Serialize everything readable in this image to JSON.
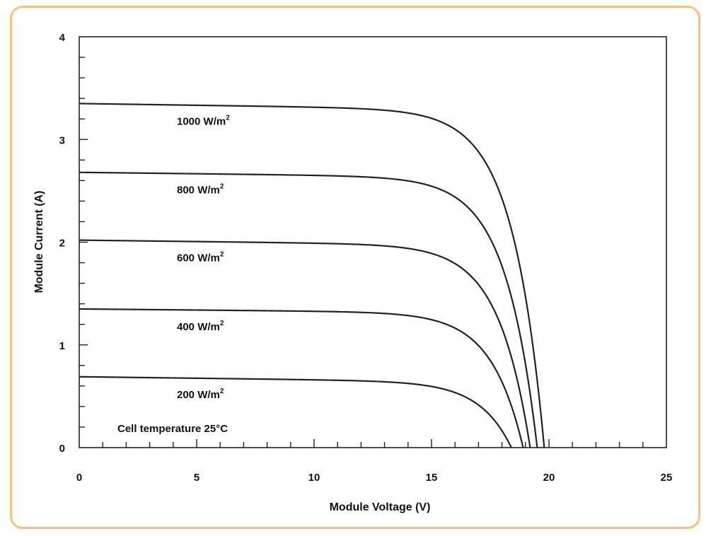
{
  "chart_data": {
    "type": "line",
    "title": "",
    "xlabel": "Module Voltage (V)",
    "ylabel": "Module Current (A)",
    "xlim": [
      0,
      25
    ],
    "ylim": [
      0,
      4
    ],
    "xticks": [
      0,
      5,
      10,
      15,
      20,
      25
    ],
    "yticks": [
      0,
      1,
      2,
      3,
      4
    ],
    "x_minor_step": 1,
    "y_minor_step": 0.2,
    "grid": false,
    "annotation": "Cell temperature 25°C",
    "series": [
      {
        "name": "1000 W/m²",
        "isc": 3.35,
        "flat_end": 3.3,
        "voc": 19.8
      },
      {
        "name": "800 W/m²",
        "isc": 2.68,
        "flat_end": 2.64,
        "voc": 19.5
      },
      {
        "name": "600 W/m²",
        "isc": 2.02,
        "flat_end": 1.98,
        "voc": 19.2
      },
      {
        "name": "400 W/m²",
        "isc": 1.35,
        "flat_end": 1.32,
        "voc": 18.9
      },
      {
        "name": "200 W/m²",
        "isc": 0.69,
        "flat_end": 0.65,
        "voc": 18.4
      }
    ]
  }
}
